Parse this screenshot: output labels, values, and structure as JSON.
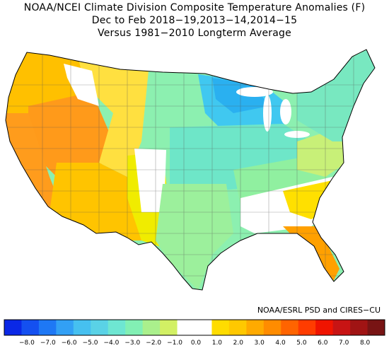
{
  "title": {
    "line1": "NOAA/NCEI Climate Division Composite Temperature Anomalies (F)",
    "line2": "Dec to Feb  2018−19,2013−14,2014−15",
    "line3": "Versus 1981−2010 Longterm Average"
  },
  "credit": "NOAA/ESRL PSD and CIRES−CU",
  "legend": {
    "colors": [
      "#0a28e6",
      "#1450f0",
      "#1e78f5",
      "#32a0f5",
      "#46c0f0",
      "#5ad2e6",
      "#6ee6d2",
      "#82f0b4",
      "#aaf08c",
      "#d2f064",
      "#ffffff",
      "#ffffff",
      "#ffdc00",
      "#ffc800",
      "#ffaa00",
      "#ff8c00",
      "#ff6400",
      "#ff3c00",
      "#f01400",
      "#c81414",
      "#a01414",
      "#781414"
    ],
    "ticks": [
      "−8.0",
      "−7.0",
      "−6.0",
      "−5.0",
      "−4.0",
      "−3.0",
      "−2.0",
      "−1.0",
      "0.0",
      "1.0",
      "2.0",
      "3.0",
      "4.0",
      "5.0",
      "6.0",
      "7.0",
      "8.0"
    ]
  },
  "map": {
    "regions": [
      {
        "name": "pacific-northwest",
        "color": "#ffc000"
      },
      {
        "name": "california-coast",
        "color": "#ff9c1c"
      },
      {
        "name": "great-basin",
        "color": "#ff9a1a"
      },
      {
        "name": "southwest",
        "color": "#ffc400"
      },
      {
        "name": "northern-rockies",
        "color": "#ffe040"
      },
      {
        "name": "southern-plains",
        "color": "#f0ec00"
      },
      {
        "name": "northern-plains",
        "color": "#8cf0b0"
      },
      {
        "name": "upper-midwest",
        "color": "#40c8f0"
      },
      {
        "name": "midwest",
        "color": "#6ee6c8"
      },
      {
        "name": "texas",
        "color": "#9cf09c"
      },
      {
        "name": "ohio-valley",
        "color": "#90f0a0"
      },
      {
        "name": "southeast",
        "color": "#ffffff"
      },
      {
        "name": "florida",
        "color": "#ffa000"
      },
      {
        "name": "carolinas",
        "color": "#ffe000"
      },
      {
        "name": "mid-atlantic",
        "color": "#c8f078"
      },
      {
        "name": "northeast",
        "color": "#78e8c0"
      },
      {
        "name": "great-lakes",
        "color": "#ffffff"
      }
    ]
  }
}
